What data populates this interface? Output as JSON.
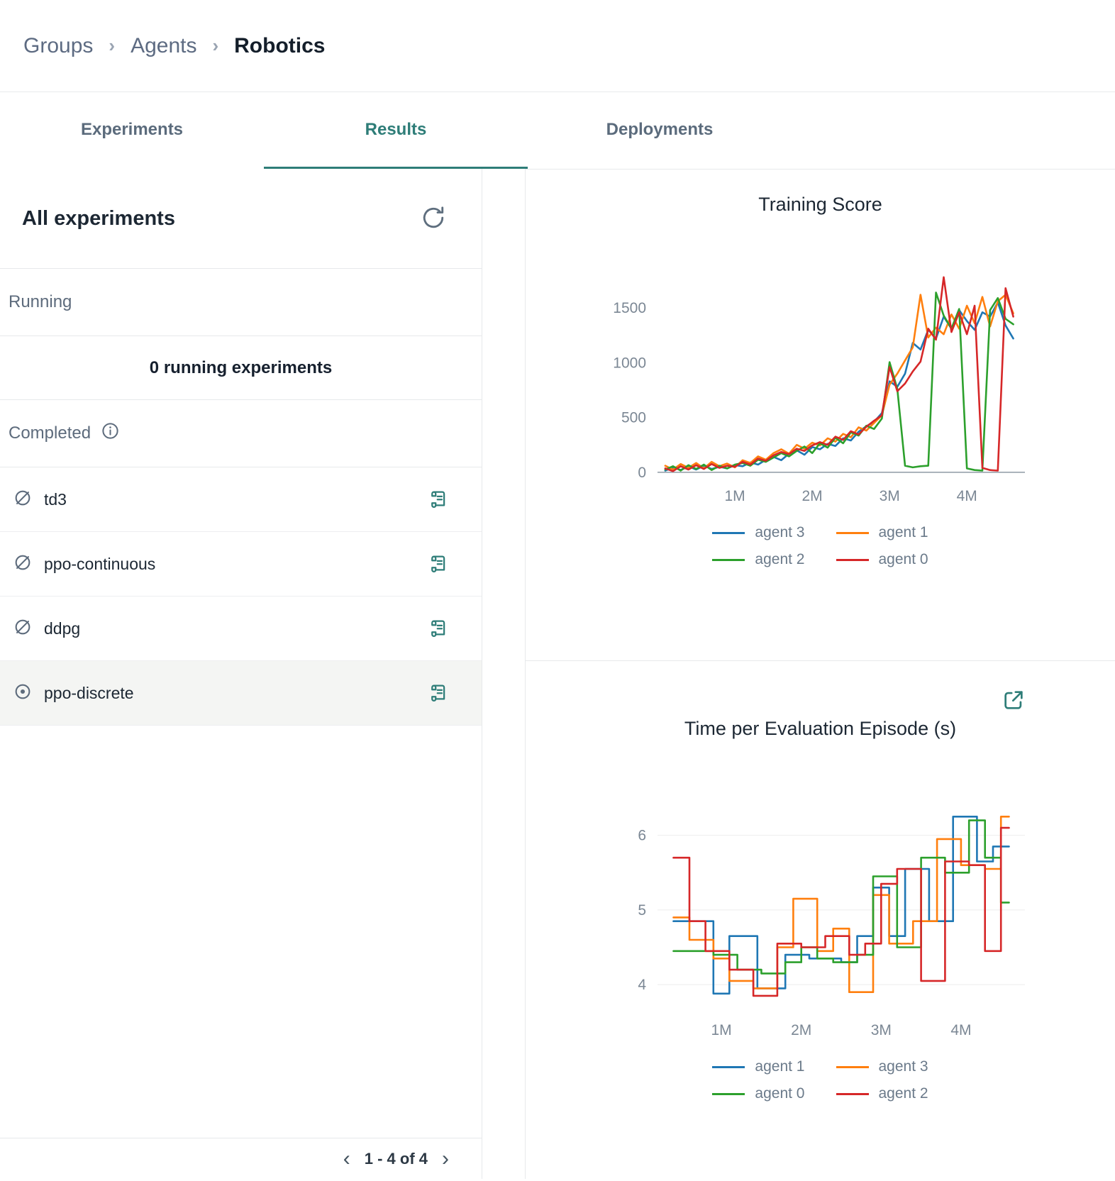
{
  "breadcrumb": {
    "items": [
      "Groups",
      "Agents",
      "Robotics"
    ],
    "separator": "›"
  },
  "tabs": [
    {
      "label": "Experiments",
      "active": false
    },
    {
      "label": "Results",
      "active": true
    },
    {
      "label": "Deployments",
      "active": false
    }
  ],
  "panel": {
    "title": "All experiments",
    "running_label": "Running",
    "running_empty": "0 running experiments",
    "completed_label": "Completed",
    "experiments": [
      {
        "name": "td3",
        "selected": false
      },
      {
        "name": "ppo-continuous",
        "selected": false
      },
      {
        "name": "ddpg",
        "selected": false
      },
      {
        "name": "ppo-discrete",
        "selected": true
      }
    ],
    "pagination": {
      "prev": "‹",
      "text": "1 - 4 of 4",
      "next": "›"
    }
  },
  "colors": {
    "accent_teal": "#2e7d78",
    "slate": "#5d6b7c",
    "agent_blue": "#1f77b4",
    "agent_orange": "#ff7f0e",
    "agent_green": "#2ca02c",
    "agent_red": "#d62728"
  },
  "chart_data": [
    {
      "type": "line",
      "title": "Training Score",
      "xlabel": "",
      "ylabel": "",
      "xlim": [
        0,
        4.75
      ],
      "ylim": [
        -40,
        1850
      ],
      "xticks": [
        1,
        2,
        3,
        4
      ],
      "xtick_labels": [
        "1M",
        "2M",
        "3M",
        "4M"
      ],
      "yticks": [
        0,
        500,
        1000,
        1500
      ],
      "grid": false,
      "baseline": 0,
      "legend_position": "bottom",
      "x": [
        0.1,
        0.2,
        0.3,
        0.4,
        0.5,
        0.6,
        0.7,
        0.8,
        0.9,
        1.0,
        1.1,
        1.2,
        1.3,
        1.4,
        1.5,
        1.6,
        1.7,
        1.8,
        1.9,
        2.0,
        2.1,
        2.2,
        2.3,
        2.4,
        2.5,
        2.6,
        2.7,
        2.8,
        2.9,
        3.0,
        3.1,
        3.2,
        3.3,
        3.4,
        3.5,
        3.6,
        3.7,
        3.8,
        3.9,
        4.0,
        4.1,
        4.2,
        4.3,
        4.4,
        4.5,
        4.6
      ],
      "series": [
        {
          "name": "agent 3",
          "color": "#1f77b4",
          "values": [
            15,
            45,
            20,
            55,
            25,
            60,
            30,
            50,
            35,
            65,
            55,
            90,
            70,
            115,
            140,
            110,
            170,
            200,
            160,
            230,
            210,
            260,
            240,
            310,
            290,
            370,
            420,
            460,
            540,
            830,
            780,
            900,
            1180,
            1120,
            1300,
            1220,
            1420,
            1310,
            1480,
            1380,
            1300,
            1460,
            1420,
            1550,
            1340,
            1220
          ]
        },
        {
          "name": "agent 1",
          "color": "#ff7f0e",
          "values": [
            60,
            25,
            75,
            40,
            85,
            35,
            95,
            55,
            80,
            45,
            110,
            85,
            145,
            115,
            175,
            210,
            170,
            250,
            215,
            270,
            245,
            310,
            280,
            350,
            320,
            410,
            380,
            450,
            520,
            800,
            900,
            1020,
            1140,
            1620,
            1230,
            1320,
            1260,
            1440,
            1310,
            1520,
            1360,
            1600,
            1330,
            1560,
            1620,
            1450
          ]
        },
        {
          "name": "agent 2",
          "color": "#2ca02c",
          "values": [
            25,
            55,
            15,
            65,
            30,
            70,
            20,
            60,
            35,
            70,
            85,
            60,
            115,
            95,
            135,
            175,
            145,
            195,
            235,
            175,
            265,
            225,
            315,
            265,
            365,
            335,
            425,
            395,
            490,
            1005,
            760,
            60,
            45,
            55,
            60,
            1640,
            1430,
            1310,
            1490,
            35,
            20,
            15,
            1480,
            1590,
            1400,
            1350
          ]
        },
        {
          "name": "agent 0",
          "color": "#d62728",
          "values": [
            35,
            10,
            55,
            25,
            65,
            30,
            75,
            40,
            60,
            50,
            95,
            70,
            125,
            105,
            155,
            185,
            165,
            215,
            195,
            245,
            275,
            250,
            325,
            295,
            375,
            345,
            415,
            470,
            520,
            960,
            740,
            810,
            920,
            1010,
            1310,
            1210,
            1780,
            1280,
            1460,
            1260,
            1520,
            40,
            20,
            15,
            1680,
            1420
          ]
        }
      ]
    },
    {
      "type": "step",
      "title": "Time per Evaluation Episode (s)",
      "xlabel": "",
      "ylabel": "",
      "xlim": [
        0.2,
        4.8
      ],
      "ylim": [
        3.65,
        6.5
      ],
      "xticks": [
        1,
        2,
        3,
        4
      ],
      "xtick_labels": [
        "1M",
        "2M",
        "3M",
        "4M"
      ],
      "yticks": [
        4,
        5,
        6
      ],
      "grid": true,
      "legend_position": "bottom",
      "series": [
        {
          "name": "agent 1",
          "color": "#1f77b4",
          "x": [
            0.4,
            0.9,
            1.1,
            1.45,
            1.8,
            2.1,
            2.5,
            2.7,
            2.9,
            3.1,
            3.3,
            3.6,
            3.9,
            4.2,
            4.4,
            4.6
          ],
          "y": [
            4.85,
            3.88,
            4.65,
            3.95,
            4.4,
            4.35,
            4.3,
            4.65,
            5.3,
            4.65,
            5.55,
            4.85,
            6.25,
            5.65,
            5.85,
            5.85
          ]
        },
        {
          "name": "agent 3",
          "color": "#ff7f0e",
          "x": [
            0.4,
            0.6,
            0.9,
            1.1,
            1.4,
            1.7,
            1.9,
            2.2,
            2.4,
            2.6,
            2.9,
            3.1,
            3.4,
            3.7,
            4.0,
            4.3,
            4.5,
            4.6
          ],
          "y": [
            4.9,
            4.6,
            4.35,
            4.05,
            3.95,
            4.5,
            5.15,
            4.45,
            4.75,
            3.9,
            5.2,
            4.55,
            4.85,
            5.95,
            5.6,
            5.55,
            6.25,
            6.25
          ]
        },
        {
          "name": "agent 0",
          "color": "#2ca02c",
          "x": [
            0.4,
            0.9,
            1.2,
            1.5,
            1.8,
            2.0,
            2.2,
            2.4,
            2.7,
            2.9,
            3.2,
            3.5,
            3.8,
            4.1,
            4.3,
            4.5,
            4.6
          ],
          "y": [
            4.45,
            4.4,
            4.2,
            4.15,
            4.3,
            4.5,
            4.35,
            4.3,
            4.4,
            5.45,
            4.5,
            5.7,
            5.5,
            6.2,
            5.7,
            5.1,
            5.1
          ]
        },
        {
          "name": "agent 2",
          "color": "#d62728",
          "x": [
            0.4,
            0.6,
            0.8,
            1.1,
            1.4,
            1.7,
            2.0,
            2.3,
            2.6,
            2.8,
            3.0,
            3.2,
            3.5,
            3.8,
            4.1,
            4.3,
            4.5,
            4.6
          ],
          "y": [
            5.7,
            4.85,
            4.45,
            4.2,
            3.85,
            4.55,
            4.5,
            4.65,
            4.4,
            4.55,
            5.35,
            5.55,
            4.05,
            5.65,
            5.6,
            4.45,
            6.1,
            6.1
          ]
        }
      ]
    }
  ]
}
